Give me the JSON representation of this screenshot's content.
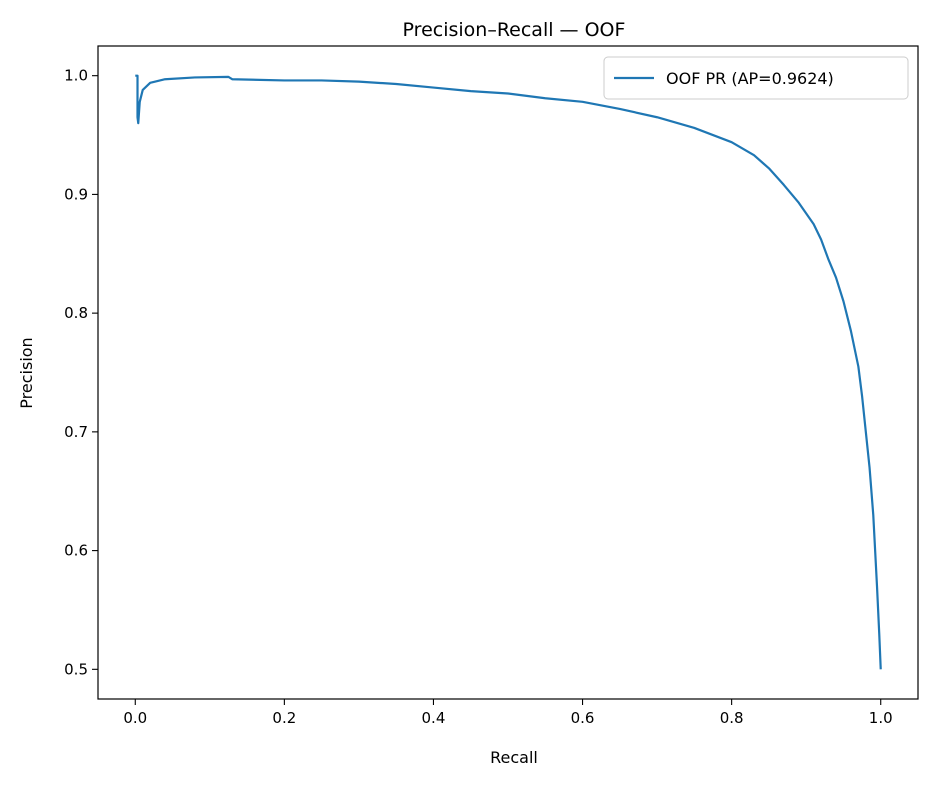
{
  "chart_data": {
    "type": "line",
    "title": "Precision–Recall — OOF",
    "xlabel": "Recall",
    "ylabel": "Precision",
    "xlim": [
      -0.05,
      1.05
    ],
    "ylim": [
      0.475,
      1.025
    ],
    "xticks": [
      0.0,
      0.2,
      0.4,
      0.6,
      0.8,
      1.0
    ],
    "xtick_labels": [
      "0.0",
      "0.2",
      "0.4",
      "0.6",
      "0.8",
      "1.0"
    ],
    "yticks": [
      0.5,
      0.6,
      0.7,
      0.8,
      0.9,
      1.0
    ],
    "ytick_labels": [
      "0.5",
      "0.6",
      "0.7",
      "0.8",
      "0.9",
      "1.0"
    ],
    "grid": false,
    "legend_position": "top-right",
    "series": [
      {
        "name": "OOF PR (AP=0.9624)",
        "color": "#1f77b4",
        "points": [
          [
            0.0,
            1.0
          ],
          [
            0.003,
            1.0
          ],
          [
            0.003,
            0.965
          ],
          [
            0.004,
            0.96
          ],
          [
            0.006,
            0.978
          ],
          [
            0.01,
            0.988
          ],
          [
            0.02,
            0.994
          ],
          [
            0.04,
            0.997
          ],
          [
            0.08,
            0.9985
          ],
          [
            0.125,
            0.999
          ],
          [
            0.13,
            0.997
          ],
          [
            0.2,
            0.996
          ],
          [
            0.25,
            0.996
          ],
          [
            0.3,
            0.995
          ],
          [
            0.35,
            0.993
          ],
          [
            0.4,
            0.99
          ],
          [
            0.45,
            0.987
          ],
          [
            0.5,
            0.985
          ],
          [
            0.55,
            0.981
          ],
          [
            0.6,
            0.978
          ],
          [
            0.65,
            0.972
          ],
          [
            0.7,
            0.965
          ],
          [
            0.75,
            0.956
          ],
          [
            0.8,
            0.944
          ],
          [
            0.83,
            0.933
          ],
          [
            0.85,
            0.922
          ],
          [
            0.87,
            0.908
          ],
          [
            0.89,
            0.893
          ],
          [
            0.91,
            0.875
          ],
          [
            0.92,
            0.862
          ],
          [
            0.93,
            0.845
          ],
          [
            0.94,
            0.83
          ],
          [
            0.95,
            0.81
          ],
          [
            0.96,
            0.785
          ],
          [
            0.97,
            0.755
          ],
          [
            0.975,
            0.73
          ],
          [
            0.98,
            0.7
          ],
          [
            0.985,
            0.67
          ],
          [
            0.99,
            0.63
          ],
          [
            0.995,
            0.57
          ],
          [
            0.998,
            0.53
          ],
          [
            1.0,
            0.5
          ]
        ]
      }
    ]
  }
}
